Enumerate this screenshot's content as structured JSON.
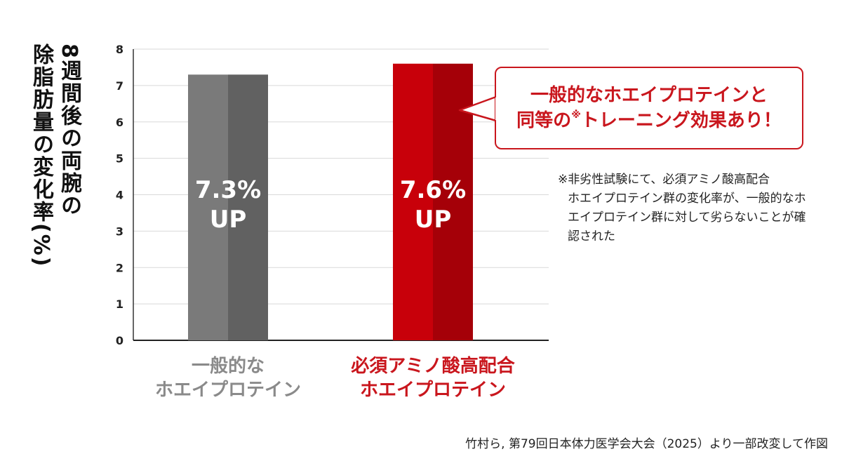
{
  "chart_data": {
    "type": "bar",
    "categories": [
      "一般的なホエイプロテイン",
      "必須アミノ酸高配合ホエイプロテイン"
    ],
    "category_lines": [
      [
        "一般的な",
        "ホエイプロテイン"
      ],
      [
        "必須アミノ酸高配合",
        "ホエイプロテイン"
      ]
    ],
    "values": [
      7.3,
      7.6
    ],
    "value_labels": [
      [
        "7.3%",
        "UP"
      ],
      [
        "7.6%",
        "UP"
      ]
    ],
    "ylabel_lines": [
      "8週間後の両腕の",
      "除脂肪量の変化率(%)"
    ],
    "yticks": [
      "0",
      "1",
      "2",
      "3",
      "4",
      "5",
      "6",
      "7",
      "8"
    ],
    "ylim": [
      0,
      8
    ],
    "grid": true,
    "colors": {
      "bar_gray": "#7a7a7a",
      "bar_gray_dark": "#616161",
      "bar_red": "#c8000a",
      "bar_red_dark": "#a50008",
      "label_gray": "#8a8a8a",
      "label_red": "#c9161d"
    }
  },
  "callout": {
    "line1": "一般的なホエイプロテインと",
    "line2_pre": "同等の",
    "line2_mark": "※",
    "line2_post": "トレーニング効果あり！"
  },
  "note": {
    "line1": "※非劣性試験にて、必須アミノ酸高配合",
    "rest": "ホエイプロテイン群の変化率が、一般的なホエイプロテイン群に対して劣らないことが確認された"
  },
  "source": "竹村ら, 第79回日本体力医学会大会（2025）より一部改変して作図"
}
